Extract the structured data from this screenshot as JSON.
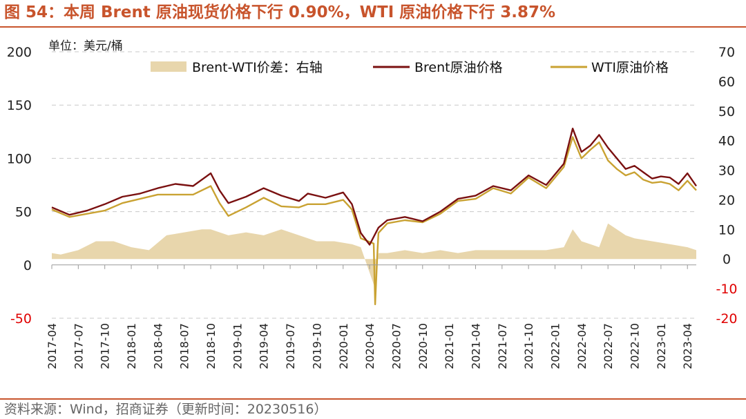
{
  "figure": {
    "title": "图 54：本周 Brent 原油现货价格下行 0.90%，WTI 原油价格下行 3.87%",
    "source": "资料来源：Wind，招商证券（更新时间：20230516）"
  },
  "colors": {
    "accent": "#c8542c",
    "brent": "#7a1010",
    "wti": "#c9a232",
    "spread": "#e8d6ac",
    "negative_tick": "#e00000"
  },
  "chart_data": {
    "type": "line",
    "unit_label": "单位：美元/桶",
    "grid": "horizontal dashed",
    "legend_position": "top",
    "y_left": {
      "range": [
        -50,
        200
      ],
      "ticks": [
        200,
        150,
        100,
        50,
        0,
        -50
      ]
    },
    "y_right": {
      "range": [
        -20,
        70
      ],
      "ticks": [
        70,
        60,
        50,
        40,
        30,
        20,
        10,
        0,
        -10,
        -20
      ]
    },
    "x_ticks": [
      "2017-04",
      "2017-07",
      "2017-10",
      "2018-01",
      "2018-04",
      "2018-07",
      "2018-10",
      "2019-01",
      "2019-04",
      "2019-07",
      "2019-10",
      "2020-01",
      "2020-04",
      "2020-07",
      "2020-10",
      "2021-01",
      "2021-04",
      "2021-07",
      "2021-10",
      "2022-01",
      "2022-04",
      "2022-07",
      "2022-10",
      "2023-01",
      "2023-04"
    ],
    "x_range": [
      "2017-04",
      "2023-05"
    ],
    "series": [
      {
        "name": "Brent-WTI价差：右轴",
        "type": "area",
        "axis": "right",
        "x": [
          "2017-04",
          "2017-05",
          "2017-07",
          "2017-09",
          "2017-11",
          "2018-01",
          "2018-03",
          "2018-05",
          "2018-07",
          "2018-09",
          "2018-10",
          "2018-12",
          "2019-02",
          "2019-04",
          "2019-06",
          "2019-08",
          "2019-10",
          "2019-12",
          "2020-02",
          "2020-03",
          "2020-04-20",
          "2020-04-28",
          "2020-05",
          "2020-06",
          "2020-08",
          "2020-10",
          "2020-12",
          "2021-02",
          "2021-04",
          "2021-06",
          "2021-08",
          "2021-10",
          "2021-12",
          "2022-02",
          "2022-03",
          "2022-04",
          "2022-05",
          "2022-06",
          "2022-07",
          "2022-08",
          "2022-09",
          "2022-10",
          "2022-12",
          "2023-02",
          "2023-04",
          "2023-05"
        ],
        "values": [
          2,
          1.5,
          3,
          6,
          6,
          4,
          3,
          8,
          9,
          10,
          10,
          8,
          9,
          8,
          10,
          8,
          6,
          6,
          5,
          4,
          -10,
          -2,
          2,
          2,
          3,
          2,
          3,
          2,
          3,
          3,
          3,
          3,
          3,
          4,
          10,
          6,
          5,
          4,
          12,
          10,
          8,
          7,
          6,
          5,
          4,
          3
        ]
      },
      {
        "name": "Brent原油价格",
        "type": "line",
        "axis": "left",
        "x": [
          "2017-04",
          "2017-06",
          "2017-08",
          "2017-10",
          "2017-12",
          "2018-02",
          "2018-04",
          "2018-06",
          "2018-08",
          "2018-10",
          "2018-11",
          "2018-12",
          "2019-02",
          "2019-04",
          "2019-06",
          "2019-08",
          "2019-09",
          "2019-11",
          "2020-01",
          "2020-02",
          "2020-03",
          "2020-04",
          "2020-05",
          "2020-06",
          "2020-08",
          "2020-10",
          "2020-12",
          "2021-02",
          "2021-04",
          "2021-06",
          "2021-08",
          "2021-10",
          "2021-12",
          "2022-02",
          "2022-03",
          "2022-04",
          "2022-05",
          "2022-06",
          "2022-07",
          "2022-08",
          "2022-09",
          "2022-10",
          "2022-11",
          "2022-12",
          "2023-01",
          "2023-02",
          "2023-03",
          "2023-04",
          "2023-05"
        ],
        "values": [
          54,
          47,
          51,
          57,
          64,
          67,
          72,
          76,
          74,
          86,
          70,
          58,
          64,
          72,
          65,
          60,
          67,
          63,
          68,
          57,
          30,
          19,
          35,
          42,
          45,
          41,
          50,
          62,
          65,
          74,
          70,
          84,
          75,
          95,
          128,
          106,
          112,
          122,
          110,
          100,
          90,
          93,
          87,
          81,
          83,
          82,
          76,
          86,
          74
        ]
      },
      {
        "name": "WTI原油价格",
        "type": "line",
        "axis": "left",
        "x": [
          "2017-04",
          "2017-06",
          "2017-08",
          "2017-10",
          "2017-12",
          "2018-02",
          "2018-04",
          "2018-06",
          "2018-08",
          "2018-10",
          "2018-11",
          "2018-12",
          "2019-02",
          "2019-04",
          "2019-06",
          "2019-08",
          "2019-09",
          "2019-11",
          "2020-01",
          "2020-02",
          "2020-03",
          "2020-04-15",
          "2020-04-20",
          "2020-04-28",
          "2020-05",
          "2020-06",
          "2020-08",
          "2020-10",
          "2020-12",
          "2021-02",
          "2021-04",
          "2021-06",
          "2021-08",
          "2021-10",
          "2021-12",
          "2022-02",
          "2022-03",
          "2022-04",
          "2022-05",
          "2022-06",
          "2022-07",
          "2022-08",
          "2022-09",
          "2022-10",
          "2022-11",
          "2022-12",
          "2023-01",
          "2023-02",
          "2023-03",
          "2023-04",
          "2023-05"
        ],
        "values": [
          52,
          45,
          48,
          51,
          58,
          62,
          66,
          66,
          66,
          74,
          58,
          46,
          54,
          63,
          55,
          54,
          57,
          57,
          61,
          52,
          25,
          20,
          -37,
          13,
          30,
          39,
          42,
          40,
          48,
          60,
          62,
          72,
          67,
          82,
          72,
          92,
          120,
          100,
          108,
          115,
          98,
          90,
          84,
          87,
          80,
          77,
          78,
          76,
          70,
          79,
          70
        ]
      }
    ]
  }
}
